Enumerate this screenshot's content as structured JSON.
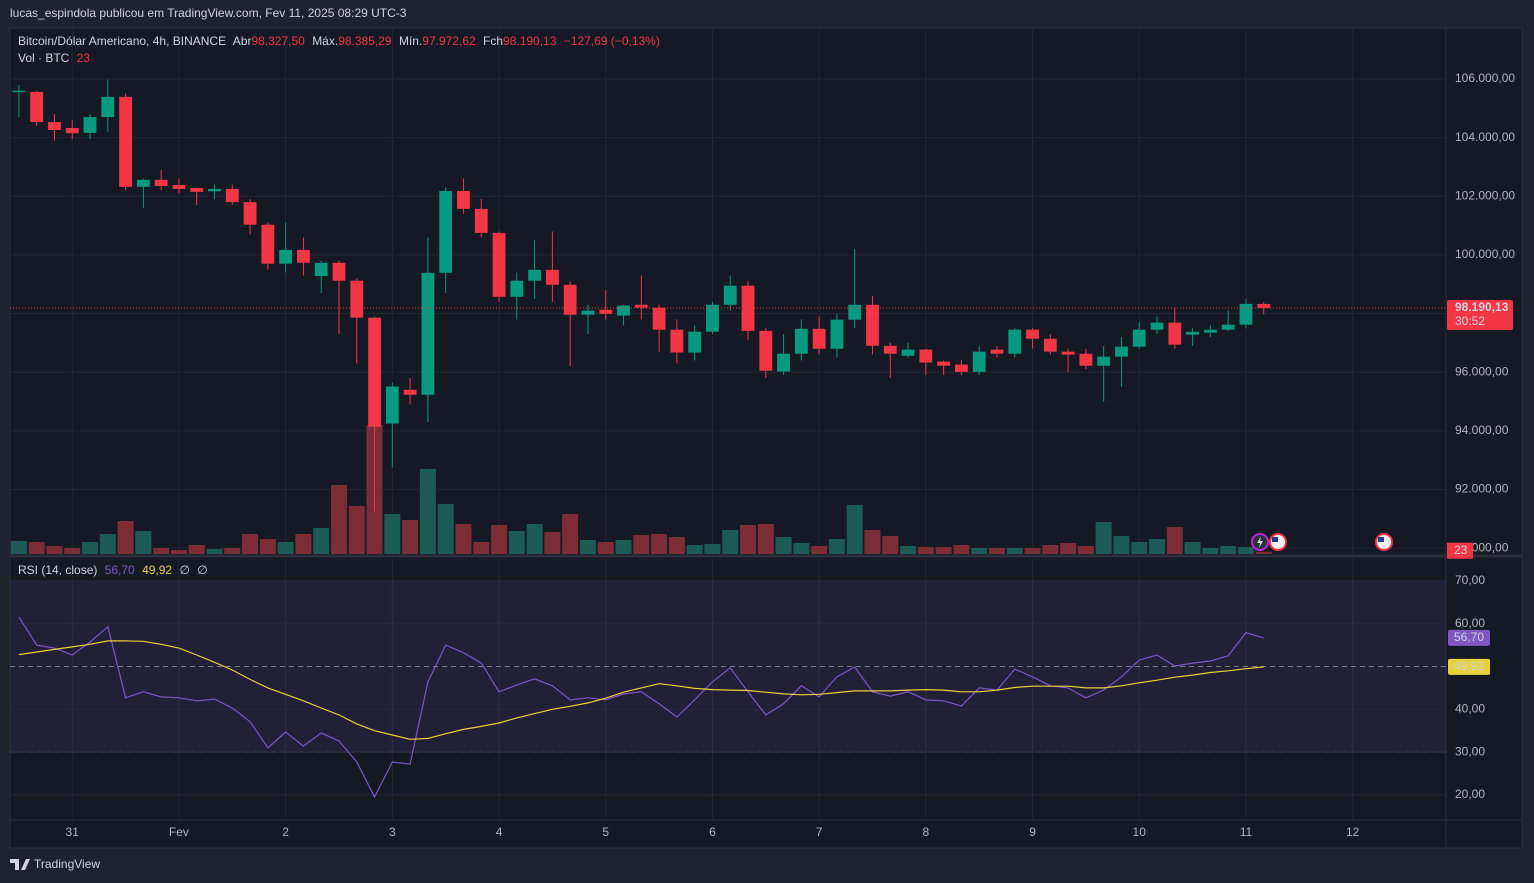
{
  "header": "lucas_espindola publicou em TradingView.com, Fev 11, 2025 08:29 UTC-3",
  "footer": "TradingView",
  "chart_data": [
    {
      "type": "candlestick",
      "title": "Bitcoin/Dólar Americano, 4h, BINANCE",
      "legend": {
        "open_label": "Abr",
        "open": "98.327,50",
        "high_label": "Máx.",
        "high": "98.385,29",
        "low_label": "Mín.",
        "low": "97.972,62",
        "close_label": "Fch",
        "close": "98.190,13",
        "change": "−127,69 (−0,13%)"
      },
      "last_price_label": "98.190,13",
      "countdown": "30:52",
      "up_color": "#089981",
      "down_color": "#f23645",
      "x": [
        -12,
        -8,
        -4,
        0,
        4,
        8,
        12,
        16,
        20,
        24,
        28,
        32,
        36,
        40,
        44,
        48,
        52,
        56,
        60,
        64,
        68,
        72,
        76,
        80,
        84,
        88,
        92,
        96,
        100,
        104,
        108,
        112,
        116,
        120,
        124,
        128,
        132,
        136,
        140,
        144,
        148,
        152,
        156,
        160,
        164,
        168,
        172,
        176,
        180,
        184,
        188,
        192,
        196,
        200,
        204,
        208,
        212,
        216,
        220,
        224,
        228,
        232,
        236,
        240,
        244,
        248,
        252,
        256,
        260,
        264,
        268
      ],
      "open": [
        105550,
        105560,
        104530,
        104330,
        104160,
        104700,
        105390,
        102320,
        102560,
        102380,
        102280,
        102170,
        102250,
        101800,
        101030,
        99700,
        100170,
        99280,
        99730,
        99120,
        97860,
        94250,
        95400,
        95230,
        99390,
        102180,
        101570,
        100750,
        98570,
        99120,
        99490,
        98980,
        97960,
        98130,
        97930,
        98300,
        98200,
        97450,
        96670,
        97380,
        98300,
        98950,
        97410,
        96020,
        96630,
        97480,
        96800,
        97790,
        98300,
        96900,
        96560,
        96770,
        96360,
        96260,
        96010,
        96770,
        96630,
        97450,
        97140,
        96700,
        96630,
        96220,
        96530,
        96870,
        97450,
        97690,
        97280,
        97350,
        97450,
        97620,
        98327.5
      ],
      "high": [
        105800,
        105600,
        104800,
        104600,
        104800,
        105980,
        105500,
        102600,
        102900,
        102600,
        102300,
        102400,
        102400,
        101900,
        101100,
        101100,
        100600,
        99800,
        99800,
        99200,
        97900,
        95640,
        95800,
        100600,
        102300,
        102600,
        101900,
        100800,
        99400,
        100500,
        100800,
        99100,
        98300,
        98800,
        98300,
        99300,
        98300,
        97800,
        97600,
        98400,
        99300,
        99100,
        97500,
        97300,
        97800,
        97900,
        98000,
        100200,
        98600,
        97000,
        97000,
        96800,
        96400,
        96400,
        96900,
        96900,
        97500,
        97500,
        97300,
        96800,
        96800,
        96900,
        97200,
        97700,
        97900,
        98200,
        97500,
        97600,
        98100,
        98500,
        98385.29
      ],
      "low": [
        104700,
        104400,
        103900,
        103950,
        103950,
        104200,
        102200,
        101600,
        102200,
        102100,
        101700,
        101900,
        101700,
        100700,
        99500,
        99400,
        99300,
        98700,
        97300,
        96300,
        91250,
        92750,
        94900,
        94300,
        98700,
        101400,
        100600,
        98400,
        97800,
        98500,
        98400,
        96200,
        97300,
        97800,
        97600,
        97800,
        96700,
        96300,
        96400,
        97300,
        98100,
        97100,
        95800,
        95900,
        96400,
        96600,
        96500,
        97500,
        96600,
        95800,
        96500,
        95900,
        95900,
        95900,
        95900,
        96500,
        96500,
        96800,
        96600,
        96000,
        96100,
        95000,
        95500,
        96800,
        97300,
        96800,
        96900,
        97200,
        97400,
        97500,
        97972.62
      ],
      "close": [
        105600,
        104530,
        104260,
        104150,
        104700,
        105390,
        102320,
        102560,
        102350,
        102250,
        102150,
        102250,
        101800,
        101030,
        99700,
        100170,
        99730,
        99730,
        99120,
        97860,
        94140,
        95510,
        95230,
        99390,
        102180,
        101570,
        100750,
        98570,
        99120,
        99490,
        98980,
        97960,
        98100,
        97990,
        98270,
        98200,
        97450,
        96670,
        97380,
        98300,
        98950,
        97410,
        96050,
        96630,
        97480,
        96800,
        97790,
        98300,
        96900,
        96630,
        96770,
        96330,
        96220,
        96010,
        96700,
        96630,
        97450,
        97140,
        96700,
        96600,
        96220,
        96530,
        96870,
        97450,
        97690,
        96940,
        97380,
        97450,
        97620,
        98330,
        98190.13
      ],
      "xlim": [
        -14,
        309
      ],
      "xticks": [
        {
          "value": 0,
          "label": "31"
        },
        {
          "value": 24,
          "label": "Fev"
        },
        {
          "value": 48,
          "label": "2"
        },
        {
          "value": 72,
          "label": "3"
        },
        {
          "value": 96,
          "label": "4"
        },
        {
          "value": 120,
          "label": "5"
        },
        {
          "value": 144,
          "label": "6"
        },
        {
          "value": 168,
          "label": "7"
        },
        {
          "value": 192,
          "label": "8"
        },
        {
          "value": 216,
          "label": "9"
        },
        {
          "value": 240,
          "label": "10"
        },
        {
          "value": 264,
          "label": "11"
        },
        {
          "value": 288,
          "label": "12"
        }
      ],
      "ylim": [
        89800,
        107670
      ],
      "yticks": [
        {
          "value": 90000,
          "label": "90.000,00"
        },
        {
          "value": 92000,
          "label": "92.000,00"
        },
        {
          "value": 94000,
          "label": "94.000,00"
        },
        {
          "value": 96000,
          "label": "96.000,00"
        },
        {
          "value": 98000,
          "label": "98.000,00"
        },
        {
          "value": 100000,
          "label": "100.000,00"
        },
        {
          "value": 102000,
          "label": "102.000,00"
        },
        {
          "value": 104000,
          "label": "104.000,00"
        },
        {
          "value": 106000,
          "label": "106.000,00"
        }
      ],
      "grid": true
    },
    {
      "type": "bar",
      "title": "Vol · BTC",
      "up_color": "#1c5a55",
      "down_color": "#7b2c34",
      "values": [
        130,
        120,
        80,
        60,
        120,
        200,
        330,
        230,
        60,
        40,
        90,
        50,
        60,
        200,
        150,
        120,
        200,
        260,
        690,
        480,
        1290,
        400,
        340,
        850,
        500,
        300,
        120,
        290,
        230,
        300,
        220,
        400,
        140,
        120,
        140,
        190,
        200,
        170,
        90,
        100,
        240,
        290,
        300,
        170,
        110,
        80,
        150,
        490,
        240,
        180,
        80,
        70,
        70,
        90,
        60,
        60,
        60,
        60,
        90,
        110,
        80,
        320,
        180,
        120,
        150,
        270,
        120,
        60,
        80,
        70,
        23
      ],
      "ylim": [
        0,
        5240
      ]
    },
    {
      "type": "line",
      "title": "RSI (14, close)",
      "inputs": [
        "∅",
        "∅"
      ],
      "band_color": "#7e57c2",
      "bands": [
        70,
        50,
        30
      ],
      "series": [
        {
          "color": "#7e57c2",
          "last_value_label": "56,70",
          "values": [
            61.6,
            55.0,
            54.3,
            52.7,
            55.7,
            59.3,
            42.7,
            44.1,
            42.9,
            42.7,
            42.0,
            42.4,
            40.3,
            37.1,
            31.0,
            34.7,
            31.4,
            34.5,
            32.6,
            27.7,
            19.5,
            27.7,
            27.2,
            46.4,
            55.0,
            53.2,
            50.8,
            44.1,
            45.7,
            47.1,
            45.5,
            42.2,
            42.7,
            42.2,
            43.6,
            44.1,
            41.3,
            38.2,
            42.2,
            46.4,
            49.7,
            44.1,
            38.7,
            41.3,
            45.5,
            42.9,
            47.6,
            49.9,
            44.1,
            43.1,
            44.1,
            42.2,
            42.0,
            40.8,
            45.0,
            44.5,
            49.4,
            47.6,
            45.5,
            45.0,
            42.7,
            44.5,
            47.6,
            51.5,
            52.7,
            50.1,
            50.8,
            51.3,
            52.5,
            57.9,
            56.7
          ]
        },
        {
          "color": "#e6d23c",
          "last_value_label": "49,92",
          "values": [
            52.8,
            53.4,
            54.0,
            54.6,
            55.2,
            56.0,
            56.0,
            55.9,
            55.2,
            54.3,
            52.7,
            51.0,
            49.2,
            47.0,
            45.0,
            43.5,
            42.0,
            40.3,
            38.7,
            36.6,
            35.0,
            34.0,
            33.0,
            33.2,
            34.3,
            35.3,
            36.0,
            36.8,
            38.0,
            39.0,
            40.0,
            40.7,
            41.5,
            42.6,
            44.0,
            45.0,
            46.0,
            45.5,
            44.9,
            44.6,
            44.5,
            44.4,
            44.0,
            43.6,
            43.4,
            43.5,
            43.9,
            44.3,
            44.3,
            44.3,
            44.5,
            44.6,
            44.5,
            44.1,
            44.1,
            44.5,
            45.1,
            45.4,
            45.4,
            45.4,
            45.0,
            45.0,
            45.5,
            46.2,
            46.8,
            47.5,
            48.0,
            48.6,
            49.0,
            49.5,
            49.92
          ]
        }
      ],
      "ylim": [
        14.6,
        74.9
      ],
      "yticks": [
        {
          "value": 20,
          "label": "20,00"
        },
        {
          "value": 30,
          "label": "30,00"
        },
        {
          "value": 40,
          "label": "40,00"
        },
        {
          "value": 60,
          "label": "60,00"
        },
        {
          "value": 70,
          "label": "70,00"
        }
      ]
    }
  ]
}
